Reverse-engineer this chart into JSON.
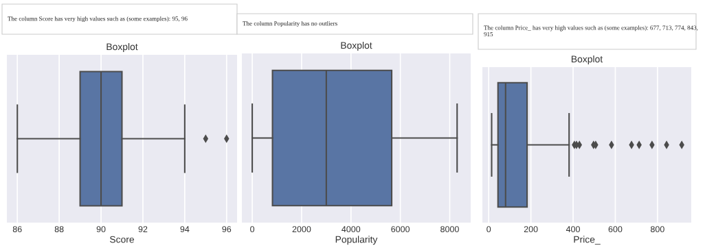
{
  "chart_data": [
    {
      "type": "box",
      "subtitle": "The column Score has very high values such as (some examples): 95, 96",
      "title": "Boxplot",
      "xlabel": "Score",
      "categories": [
        null
      ],
      "color": "#5975a4",
      "boxes": [
        {
          "low": 86,
          "q1": 89,
          "median": 90,
          "q3": 91,
          "high": 94,
          "outliers": [
            95,
            96
          ]
        }
      ],
      "orientation": "horizontal",
      "xlim": [
        85.5,
        96.5
      ],
      "xticks": [
        86,
        88,
        90,
        92,
        94,
        96
      ],
      "grid": "x",
      "tick_labels": "x"
    },
    {
      "type": "box",
      "subtitle": "The column Popularity has no outliers",
      "title": "Boxplot",
      "xlabel": "Popularity",
      "categories": [
        null
      ],
      "color": "#5975a4",
      "boxes": [
        {
          "low": 0,
          "q1": 820,
          "median": 3000,
          "q3": 5650,
          "high": 8300
        }
      ],
      "orientation": "horizontal",
      "xlim": [
        -420,
        8850
      ],
      "xticks": [
        0,
        2000,
        4000,
        6000,
        8000
      ],
      "grid": "x",
      "tick_labels": "x"
    },
    {
      "type": "box",
      "subtitle": "The column Price_ has very high values such as (some examples): 677, 713, 774, 843, 915",
      "title": "Boxplot",
      "xlabel": "Price_",
      "categories": [
        null
      ],
      "color": "#5975a4",
      "boxes": [
        {
          "low": 14,
          "q1": 44,
          "median": 80,
          "q3": 182,
          "high": 381,
          "outliers": [
            406,
            416,
            430,
            497,
            507,
            582,
            677,
            713,
            774,
            843,
            915
          ]
        }
      ],
      "orientation": "horizontal",
      "xlim": [
        -30,
        960
      ],
      "xticks": [
        0,
        200,
        400,
        600,
        800
      ],
      "grid": "x",
      "tick_labels": "x"
    }
  ]
}
